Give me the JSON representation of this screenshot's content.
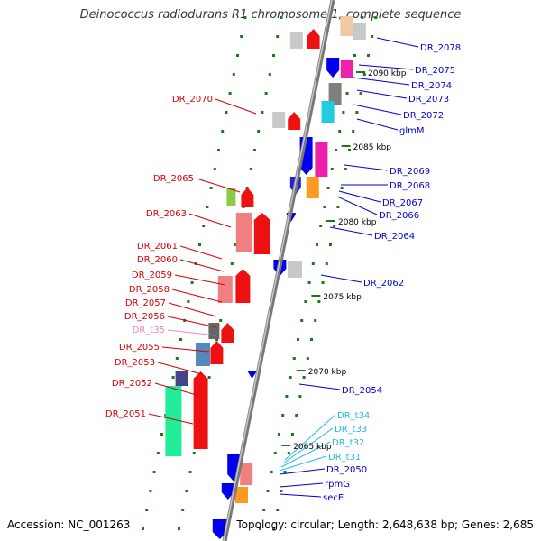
{
  "title": "Deinococcus radiodurans R1 chromosome 1, complete sequence",
  "accession": "Accession: NC_001263",
  "topology": "Topology: circular; Length: 2,648,638 bp; Genes: 2,685",
  "colors": {
    "backbone": "#888888",
    "left_label": "#d40000",
    "right_label": "#0000cc",
    "trna_label": "#22bbdd",
    "pink_label": "#ee88bb",
    "tick": "#1a7a1a"
  },
  "scale_marks": [
    "2090 kbp",
    "2085 kbp",
    "2080 kbp",
    "2075 kbp",
    "2070 kbp",
    "2065 kbp"
  ],
  "left_labels": [
    "DR_2070",
    "DR_2065",
    "DR_2063",
    "DR_2061",
    "DR_2060",
    "DR_2059",
    "DR_2058",
    "DR_2057",
    "DR_2056",
    "DR_t35",
    "DR_2055",
    "DR_2053",
    "DR_2052",
    "DR_2051"
  ],
  "right_labels": [
    "DR_2078",
    "DR_2075",
    "DR_2074",
    "DR_2073",
    "DR_2072",
    "glmM",
    "DR_2069",
    "DR_2068",
    "DR_2067",
    "DR_2066",
    "DR_2064",
    "DR_2062",
    "DR_2054",
    "DR_t34",
    "DR_t33",
    "DR_t32",
    "DR_t31",
    "DR_2050",
    "rpmG",
    "secE"
  ]
}
